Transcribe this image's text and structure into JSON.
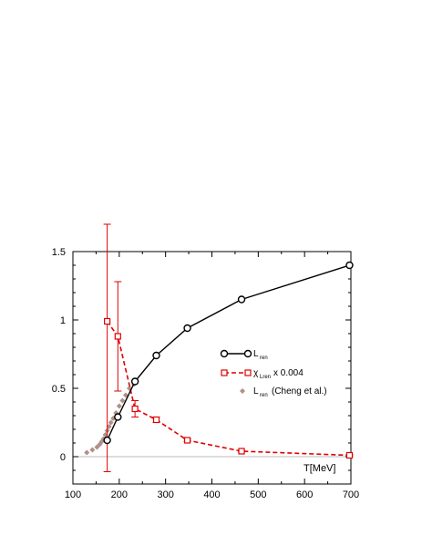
{
  "chart_data": {
    "type": "line",
    "xlabel": "T[MeV]",
    "ylabel": "",
    "xlim": [
      100,
      700
    ],
    "ylim": [
      -0.2,
      1.5
    ],
    "x_ticks": [
      "100",
      "200",
      "300",
      "400",
      "500",
      "600",
      "700"
    ],
    "y_ticks": [
      "0",
      "0.5",
      "1",
      "1.5"
    ],
    "grid": false,
    "zero_line": true,
    "legend_position": "right",
    "series": [
      {
        "name": "L_ren",
        "legend": {
          "main": "L",
          "sub": "ren",
          "suffix": ""
        },
        "style": "solid-circle",
        "color": "#000000",
        "points": [
          {
            "x": 174,
            "y": 0.12
          },
          {
            "x": 197,
            "y": 0.29
          },
          {
            "x": 234,
            "y": 0.55
          },
          {
            "x": 280,
            "y": 0.74
          },
          {
            "x": 347,
            "y": 0.94
          },
          {
            "x": 464,
            "y": 1.15
          },
          {
            "x": 697,
            "y": 1.4
          }
        ]
      },
      {
        "name": "χ_L_ren x 0.004",
        "legend": {
          "main": "χ",
          "sub": "Lren",
          "suffix": "x 0.004"
        },
        "style": "dashed-square",
        "color": "#e00000",
        "points": [
          {
            "x": 174,
            "y": 0.99,
            "err": 1.1
          },
          {
            "x": 197,
            "y": 0.88,
            "err": 0.4
          },
          {
            "x": 234,
            "y": 0.35,
            "err": 0.06
          },
          {
            "x": 280,
            "y": 0.27,
            "err": 0.02
          },
          {
            "x": 347,
            "y": 0.12,
            "err": 0.01
          },
          {
            "x": 464,
            "y": 0.04,
            "err": 0.005
          },
          {
            "x": 697,
            "y": 0.01,
            "err": 0.005
          }
        ]
      },
      {
        "name": "L_ren (Cheng et al.)",
        "legend": {
          "main": "L",
          "sub": "ren",
          "suffix": "(Cheng et al.)"
        },
        "style": "diamond",
        "color": "#b09088",
        "points": [
          {
            "x": 130,
            "y": 0.03
          },
          {
            "x": 142,
            "y": 0.05
          },
          {
            "x": 152,
            "y": 0.07
          },
          {
            "x": 158,
            "y": 0.09
          },
          {
            "x": 162,
            "y": 0.11
          },
          {
            "x": 166,
            "y": 0.13
          },
          {
            "x": 170,
            "y": 0.16
          },
          {
            "x": 174,
            "y": 0.19
          },
          {
            "x": 178,
            "y": 0.22
          },
          {
            "x": 182,
            "y": 0.25
          },
          {
            "x": 187,
            "y": 0.28
          },
          {
            "x": 193,
            "y": 0.32
          },
          {
            "x": 200,
            "y": 0.37
          },
          {
            "x": 207,
            "y": 0.41
          },
          {
            "x": 214,
            "y": 0.45
          },
          {
            "x": 222,
            "y": 0.5
          },
          {
            "x": 232,
            "y": 0.53
          }
        ]
      }
    ]
  }
}
